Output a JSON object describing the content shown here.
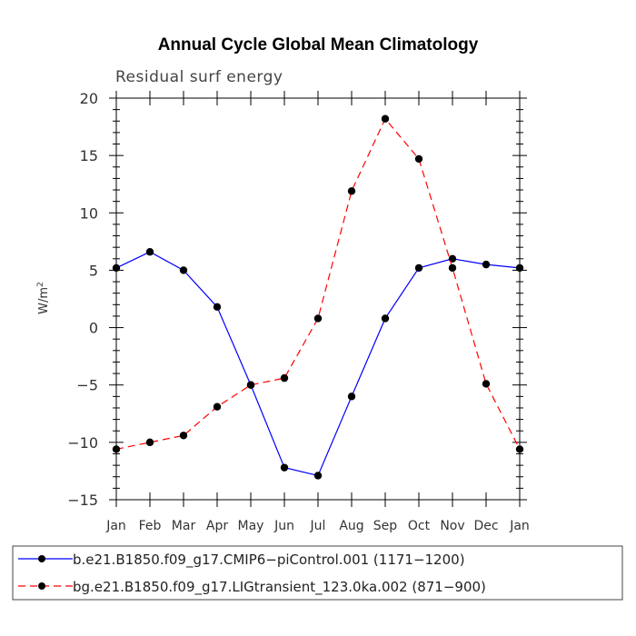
{
  "chart_data": {
    "type": "line",
    "title": "Annual Cycle Global Mean Climatology",
    "subtitle": "Residual surf energy",
    "ylabel_base": "W/m",
    "ylabel_sup": "2",
    "xlabel": "",
    "categories": [
      "Jan",
      "Feb",
      "Mar",
      "Apr",
      "May",
      "Jun",
      "Jul",
      "Aug",
      "Sep",
      "Oct",
      "Nov",
      "Dec",
      "Jan"
    ],
    "ylim": [
      -15,
      20
    ],
    "yticks": [
      "20",
      "15",
      "10",
      "5",
      "0",
      "−5",
      "−10",
      "−15"
    ],
    "ytick_values": [
      20,
      15,
      10,
      5,
      0,
      -5,
      -10,
      -15
    ],
    "grid": false,
    "legend_position": "bottom",
    "series": [
      {
        "name": "b.e21.B1850.f09_g17.CMIP6−piControl.001 (1171−1200)",
        "color": "#0000ff",
        "dash": "solid",
        "values": [
          5.2,
          6.6,
          5.0,
          1.8,
          -5.0,
          -12.2,
          -12.9,
          -6.0,
          0.8,
          5.2,
          6.0,
          5.5,
          5.2
        ]
      },
      {
        "name": "bg.e21.B1850.f09_g17.LIGtransient_123.0ka.002 (871−900)",
        "color": "#ff0000",
        "dash": "dashed",
        "values": [
          -10.6,
          -10.0,
          -9.4,
          -6.9,
          -5.0,
          -4.4,
          0.8,
          11.9,
          18.2,
          14.7,
          5.2,
          -4.9,
          -10.6
        ]
      }
    ]
  }
}
